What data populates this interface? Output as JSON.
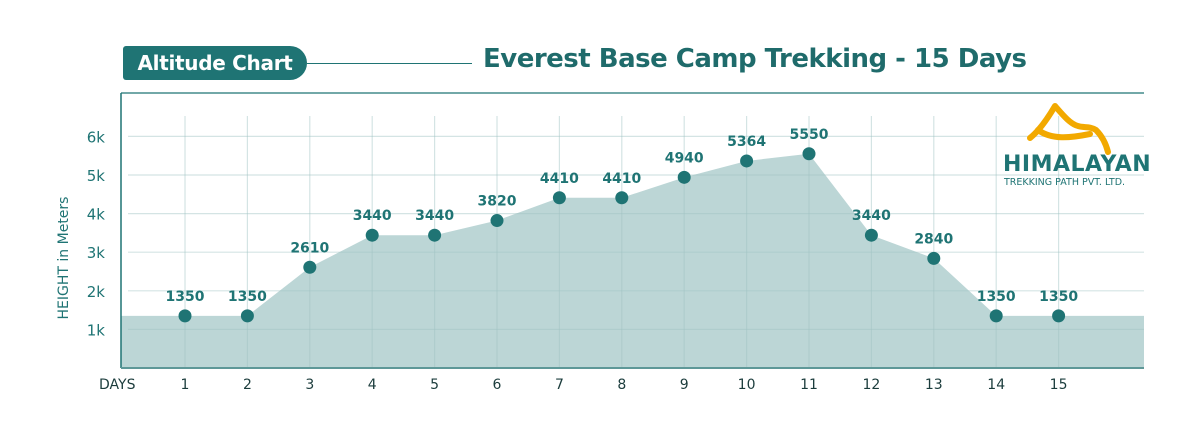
{
  "header": {
    "badge": "Altitude Chart",
    "title": "Everest Base Camp Trekking - 15 Days"
  },
  "logo": {
    "name": "HIMALAYAN",
    "subtitle": "TREKKING PATH PVT. LTD.",
    "accent_color": "#f2a900"
  },
  "colors": {
    "primary": "#1f7474",
    "area_fill": "#bcd6d6",
    "grid": "#d6e6e6"
  },
  "chart_data": {
    "type": "area",
    "title": "Everest Base Camp Trekking - 15 Days",
    "xlabel": "DAYS",
    "ylabel": "HEIGHT in Meters",
    "x": [
      1,
      2,
      3,
      4,
      5,
      6,
      7,
      8,
      9,
      10,
      11,
      12,
      13,
      14,
      15
    ],
    "values": [
      1350,
      1350,
      2610,
      3440,
      3440,
      3820,
      4410,
      4410,
      4940,
      5364,
      5550,
      3440,
      2840,
      1350,
      1350
    ],
    "data_labels": [
      "1350",
      "1350",
      "2610",
      "3440",
      "3440",
      "3820",
      "4410",
      "4410",
      "4940",
      "5364",
      "5550",
      "3440",
      "2840",
      "1350",
      "1350"
    ],
    "y_ticks": [
      {
        "value": 1000,
        "label": "1k"
      },
      {
        "value": 2000,
        "label": "2k"
      },
      {
        "value": 3000,
        "label": "3k"
      },
      {
        "value": 4000,
        "label": "4k"
      },
      {
        "value": 5000,
        "label": "5k"
      },
      {
        "value": 6000,
        "label": "6k"
      }
    ],
    "x_tick_labels": [
      "1",
      "2",
      "3",
      "4",
      "5",
      "6",
      "7",
      "8",
      "9",
      "10",
      "11",
      "12",
      "13",
      "14",
      "15"
    ],
    "ylim": [
      0,
      7000
    ],
    "grid": true,
    "legend": "none"
  }
}
